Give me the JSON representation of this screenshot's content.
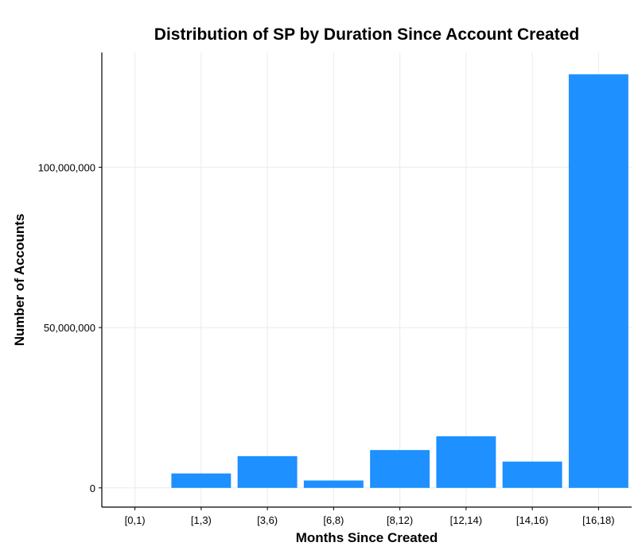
{
  "chart_data": {
    "type": "bar",
    "title": "Distribution of SP by Duration Since Account Created",
    "xlabel": "Months Since Created",
    "ylabel": "Number of Accounts",
    "categories": [
      "[0,1)",
      "[1,3)",
      "[3,6)",
      "[6,8)",
      "[8,12)",
      "[12,14)",
      "[14,16)",
      "[16,18)"
    ],
    "values": [
      0,
      4500000,
      9900000,
      2300000,
      11800000,
      16100000,
      8200000,
      129000000
    ],
    "ylim": [
      -6000000,
      135800000
    ],
    "yticks": [
      0,
      50000000,
      100000000
    ],
    "ytick_labels": [
      "0",
      "50,000,000",
      "100,000,000"
    ],
    "bar_color": "#1E90FF",
    "grid": true,
    "legend": "none"
  }
}
